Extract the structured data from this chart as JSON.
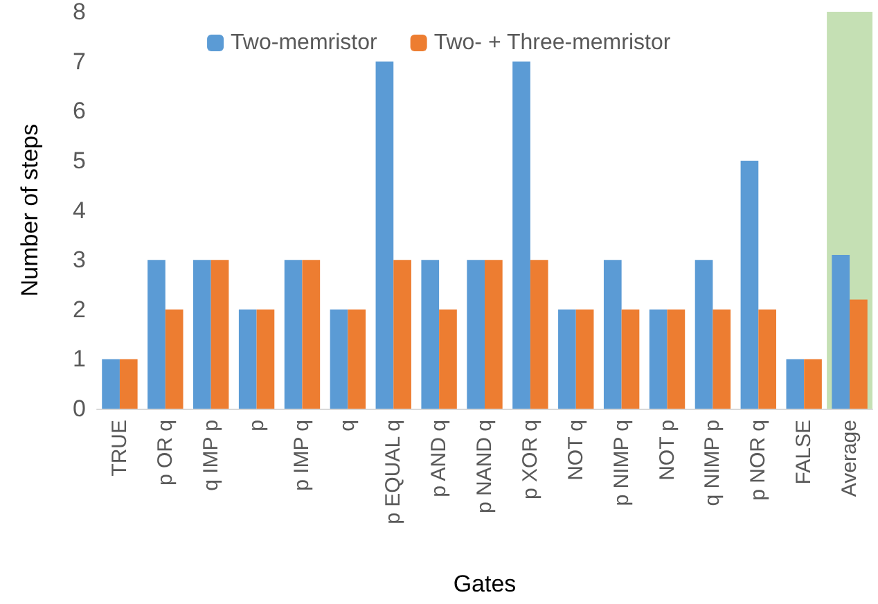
{
  "chart_data": {
    "type": "bar",
    "xlabel": "Gates",
    "ylabel": "Number of steps",
    "categories": [
      "TRUE",
      "p OR q",
      "q IMP p",
      "p",
      "p IMP q",
      "q",
      "p EQUAL q",
      "p AND q",
      "p NAND q",
      "p XOR q",
      "NOT q",
      "p NIMP q",
      "NOT p",
      "q NIMP p",
      "p NOR q",
      "FALSE",
      "Average"
    ],
    "series": [
      {
        "name": "Two-memristor",
        "color": "#5b9bd5",
        "values": [
          1,
          3,
          3,
          2,
          3,
          2,
          7,
          3,
          3,
          7,
          2,
          3,
          2,
          3,
          5,
          1,
          3.1
        ]
      },
      {
        "name": "Two- + Three-memristor",
        "color": "#ed7d31",
        "values": [
          1,
          2,
          3,
          2,
          3,
          2,
          3,
          2,
          3,
          3,
          2,
          2,
          2,
          2,
          2,
          1,
          2.2
        ]
      }
    ],
    "ylim": [
      0,
      8
    ],
    "yticks": [
      0,
      1,
      2,
      3,
      4,
      5,
      6,
      7,
      8
    ],
    "grid": false,
    "legend": "top",
    "bands": [
      {
        "axis": "x",
        "from": "Average",
        "to": "Average",
        "color": "#c5e0b4"
      }
    ]
  }
}
